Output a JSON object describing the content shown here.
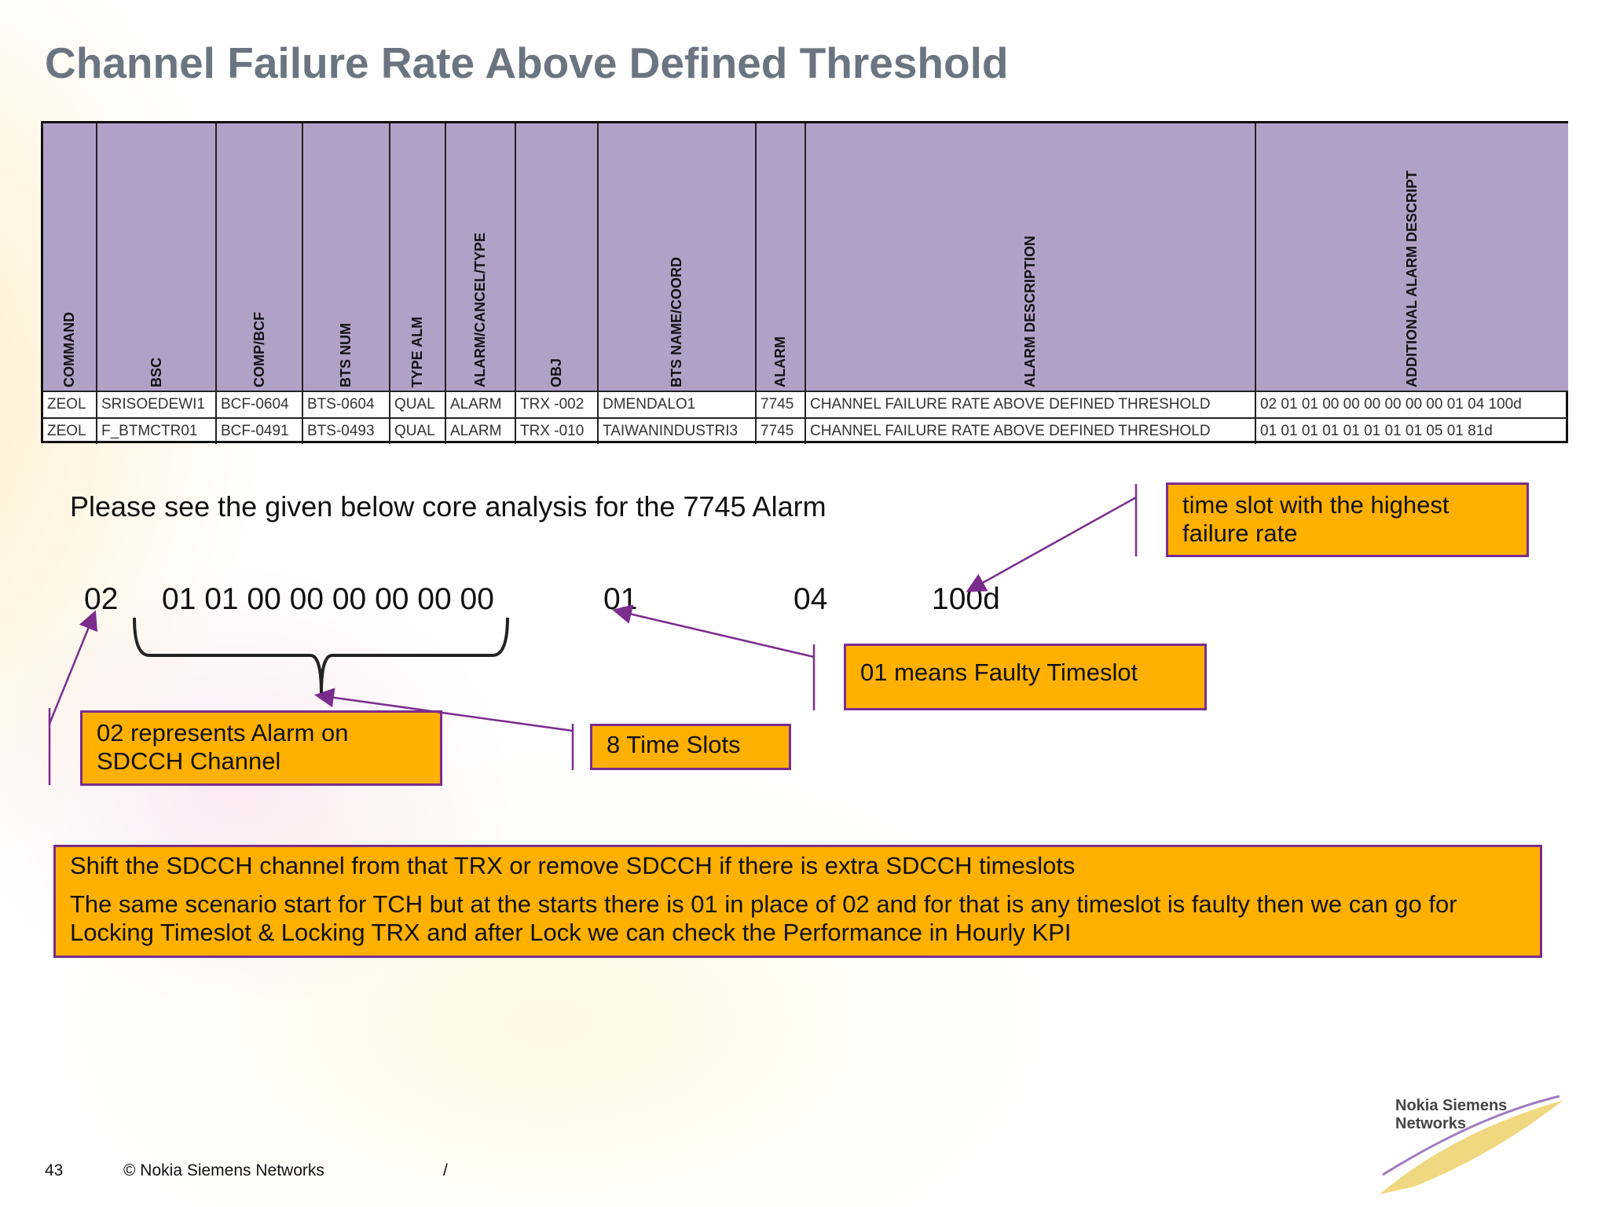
{
  "header": {
    "title": "Channel Failure Rate Above Defined Threshold"
  },
  "table": {
    "columns": [
      "COMMAND",
      "BSC",
      "COMP/BCF",
      "BTS NUM",
      "TYPE ALM",
      "ALARM/CANCEL/TYPE",
      "OBJ",
      "BTS NAME/COORD",
      "ALARM",
      "ALARM DESCRIPTION",
      "ADDITIONAL ALARM DESCRIPT"
    ],
    "rows": [
      [
        "ZEOL",
        "SRISOEDEWI1",
        "BCF-0604",
        "BTS-0604",
        "QUAL",
        "ALARM",
        "TRX -002",
        "DMENDALO1",
        "7745",
        "CHANNEL FAILURE RATE ABOVE DEFINED THRESHOLD",
        "02 01 01 00 00 00 00 00 00 01 04 100d"
      ],
      [
        "ZEOL",
        "F_BTMCTR01",
        "BCF-0491",
        "BTS-0493",
        "QUAL",
        "ALARM",
        "TRX -010",
        "TAIWANINDUSTRI3",
        "7745",
        "CHANNEL FAILURE RATE ABOVE DEFINED THRESHOLD",
        "01 01 01 01 01 01 01 01 05 01 81d"
      ]
    ]
  },
  "analysis": {
    "intro": "Please see the given below core analysis for the 7745 Alarm",
    "code": [
      "02",
      "01 01 00 00 00 00 00 00",
      "01",
      "04",
      "100d"
    ]
  },
  "callouts": [
    "time slot with the highest failure rate",
    "01 means Faulty Timeslot",
    "02 represents Alarm on SDCCH Channel",
    "8 Time Slots"
  ],
  "note": {
    "paragraphs": [
      "Shift the SDCCH channel from that TRX or remove SDCCH if there is extra SDCCH timeslots",
      "The same scenario start for TCH but at the starts there is 01 in place of 02 and for that is any timeslot is faulty then we can go for Locking Timeslot & Locking TRX and after Lock we can check the Performance in Hourly KPI"
    ]
  },
  "footer": {
    "page": "43",
    "copyright": "© Nokia Siemens Networks",
    "separator": "/",
    "logo": [
      "Nokia Siemens",
      "Networks"
    ]
  }
}
